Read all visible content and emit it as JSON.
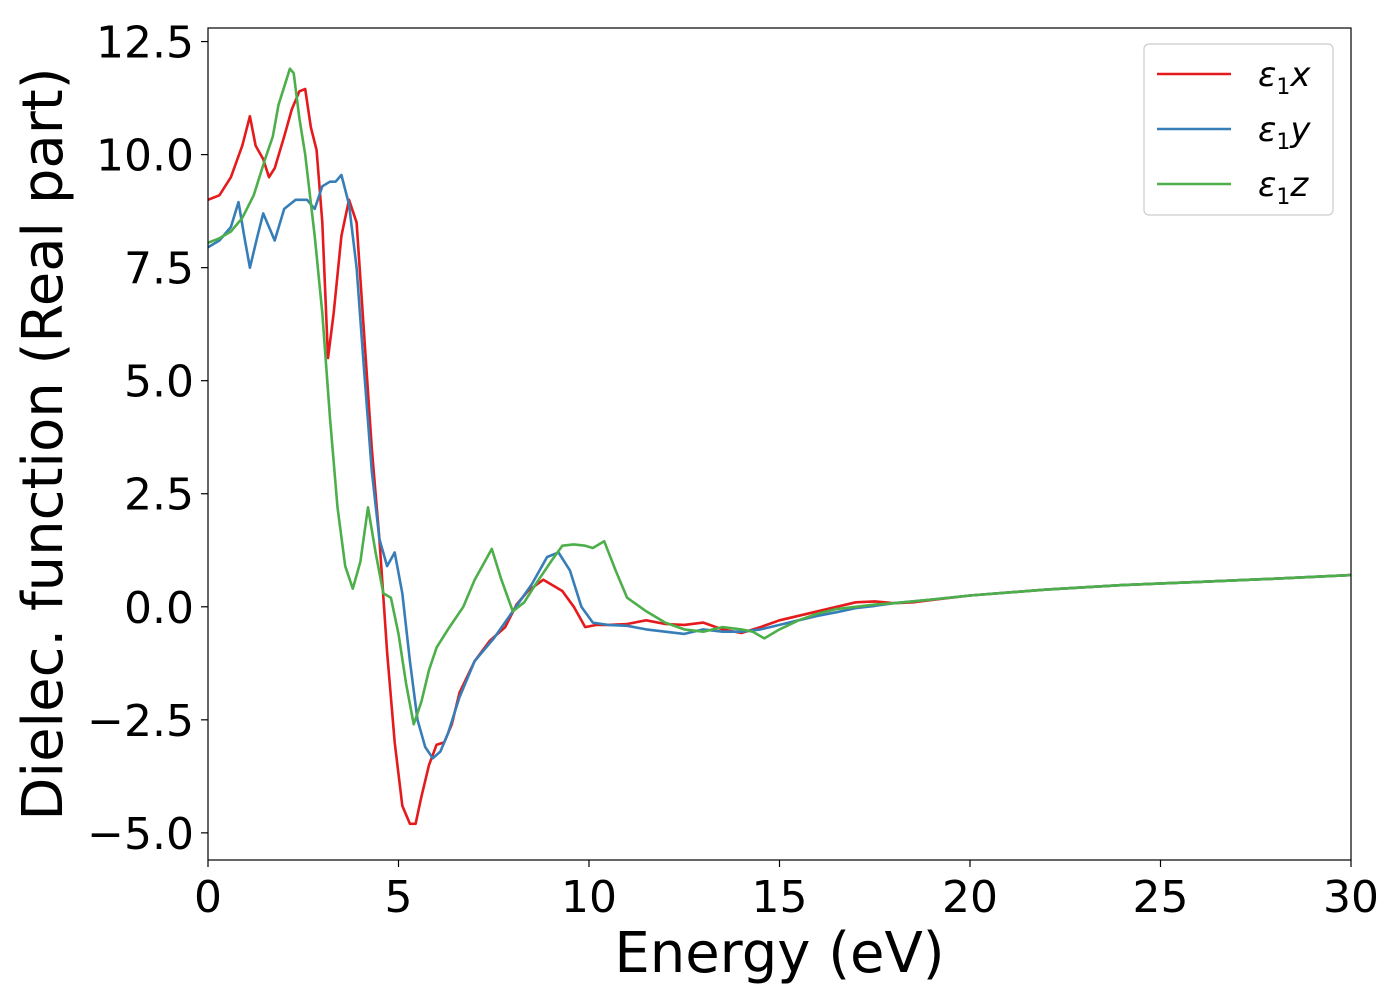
{
  "chart_data": {
    "type": "line",
    "xlabel": "Energy (eV)",
    "ylabel": "Dielec. function (Real part)",
    "xlim": [
      0,
      30
    ],
    "ylim": [
      -5.6,
      12.8
    ],
    "xticks": [
      0,
      5,
      10,
      15,
      20,
      25,
      30
    ],
    "xtick_labels": [
      "0",
      "5",
      "10",
      "15",
      "20",
      "25",
      "30"
    ],
    "yticks": [
      -5.0,
      -2.5,
      0.0,
      2.5,
      5.0,
      7.5,
      10.0,
      12.5
    ],
    "ytick_labels": [
      "−5.0",
      "−2.5",
      "0.0",
      "2.5",
      "5.0",
      "7.5",
      "10.0",
      "12.5"
    ],
    "grid": false,
    "legend_position": "top-right",
    "series": [
      {
        "name": "ε₁x",
        "legend_main": "ε",
        "legend_sub": "1",
        "legend_var": "x",
        "color": "#e41a1c",
        "x": [
          0,
          0.3,
          0.6,
          0.9,
          1.1,
          1.25,
          1.45,
          1.6,
          1.75,
          2.0,
          2.2,
          2.4,
          2.55,
          2.7,
          2.85,
          3.0,
          3.15,
          3.3,
          3.5,
          3.7,
          3.9,
          4.1,
          4.3,
          4.5,
          4.7,
          4.9,
          5.1,
          5.3,
          5.45,
          5.6,
          5.8,
          6.0,
          6.2,
          6.4,
          6.6,
          7.0,
          7.4,
          7.8,
          8.1,
          8.4,
          8.8,
          9.0,
          9.3,
          9.6,
          9.9,
          10.2,
          10.5,
          11.0,
          11.5,
          12.0,
          12.5,
          13.0,
          13.5,
          14.0,
          14.5,
          15.0,
          15.5,
          16.0,
          16.5,
          17.0,
          17.5,
          18.0,
          18.5,
          19.0,
          20.0,
          22.0,
          24.0,
          26.0,
          28.0,
          30.0
        ],
        "y": [
          9.0,
          9.1,
          9.5,
          10.2,
          10.85,
          10.2,
          9.9,
          9.5,
          9.7,
          10.4,
          11.0,
          11.4,
          11.45,
          10.6,
          10.1,
          8.5,
          5.5,
          6.5,
          8.2,
          9.0,
          8.5,
          6.0,
          3.5,
          1.5,
          -1.0,
          -3.0,
          -4.4,
          -4.8,
          -4.8,
          -4.2,
          -3.5,
          -3.05,
          -3.0,
          -2.6,
          -1.9,
          -1.2,
          -0.75,
          -0.45,
          0.05,
          0.35,
          0.6,
          0.5,
          0.35,
          0.0,
          -0.45,
          -0.4,
          -0.4,
          -0.38,
          -0.3,
          -0.38,
          -0.4,
          -0.35,
          -0.5,
          -0.58,
          -0.45,
          -0.3,
          -0.2,
          -0.1,
          0.0,
          0.1,
          0.12,
          0.08,
          0.1,
          0.15,
          0.25,
          0.38,
          0.48,
          0.55,
          0.62,
          0.7
        ]
      },
      {
        "name": "ε₁y",
        "legend_main": "ε",
        "legend_sub": "1",
        "legend_var": "y",
        "color": "#377eb8",
        "x": [
          0,
          0.3,
          0.6,
          0.8,
          0.95,
          1.1,
          1.3,
          1.45,
          1.6,
          1.75,
          2.0,
          2.3,
          2.6,
          2.8,
          3.0,
          3.2,
          3.35,
          3.5,
          3.7,
          3.9,
          4.1,
          4.3,
          4.5,
          4.7,
          4.9,
          5.1,
          5.3,
          5.5,
          5.7,
          5.9,
          6.1,
          6.3,
          6.6,
          7.0,
          7.5,
          8.0,
          8.5,
          8.9,
          9.2,
          9.5,
          9.8,
          10.1,
          10.5,
          11.0,
          11.5,
          12.0,
          12.5,
          13.0,
          13.5,
          14.0,
          14.5,
          15.0,
          15.5,
          16.0,
          16.5,
          17.0,
          17.5,
          18.0,
          19.0,
          20.0,
          22.0,
          24.0,
          26.0,
          28.0,
          30.0
        ],
        "y": [
          7.95,
          8.1,
          8.4,
          8.95,
          8.2,
          7.5,
          8.2,
          8.7,
          8.4,
          8.1,
          8.8,
          9.0,
          9.0,
          8.8,
          9.3,
          9.4,
          9.4,
          9.55,
          8.9,
          7.5,
          5.2,
          3.0,
          1.5,
          0.9,
          1.2,
          0.3,
          -1.2,
          -2.5,
          -3.1,
          -3.35,
          -3.2,
          -2.8,
          -2.0,
          -1.2,
          -0.7,
          -0.1,
          0.5,
          1.1,
          1.2,
          0.8,
          0.0,
          -0.35,
          -0.4,
          -0.42,
          -0.5,
          -0.55,
          -0.6,
          -0.5,
          -0.55,
          -0.55,
          -0.5,
          -0.4,
          -0.3,
          -0.2,
          -0.12,
          -0.03,
          0.02,
          0.08,
          0.16,
          0.25,
          0.38,
          0.48,
          0.55,
          0.62,
          0.7
        ]
      },
      {
        "name": "ε₁z",
        "legend_main": "ε",
        "legend_sub": "1",
        "legend_var": "z",
        "color": "#4daf4a",
        "x": [
          0,
          0.3,
          0.6,
          0.9,
          1.2,
          1.5,
          1.7,
          1.85,
          2.0,
          2.15,
          2.25,
          2.4,
          2.55,
          2.8,
          3.0,
          3.2,
          3.4,
          3.6,
          3.8,
          4.0,
          4.2,
          4.4,
          4.6,
          4.8,
          5.0,
          5.2,
          5.4,
          5.6,
          5.8,
          6.0,
          6.3,
          6.7,
          7.0,
          7.2,
          7.45,
          7.7,
          8.0,
          8.3,
          8.6,
          9.0,
          9.3,
          9.6,
          9.9,
          10.1,
          10.4,
          10.7,
          11.0,
          11.5,
          12.0,
          12.5,
          13.0,
          13.5,
          14.0,
          14.3,
          14.6,
          15.0,
          15.5,
          16.0,
          16.5,
          17.0,
          17.5,
          18.0,
          19.0,
          20.0,
          22.0,
          24.0,
          26.0,
          28.0,
          30.0
        ],
        "y": [
          8.05,
          8.15,
          8.3,
          8.6,
          9.1,
          9.9,
          10.4,
          11.1,
          11.5,
          11.9,
          11.8,
          10.8,
          10.0,
          8.2,
          6.5,
          4.2,
          2.2,
          0.9,
          0.4,
          1.0,
          2.2,
          1.2,
          0.3,
          0.2,
          -0.6,
          -1.7,
          -2.6,
          -2.1,
          -1.4,
          -0.9,
          -0.5,
          0.0,
          0.6,
          0.9,
          1.28,
          0.6,
          -0.1,
          0.1,
          0.5,
          1.0,
          1.35,
          1.38,
          1.35,
          1.3,
          1.45,
          0.8,
          0.2,
          -0.1,
          -0.35,
          -0.5,
          -0.55,
          -0.45,
          -0.5,
          -0.55,
          -0.7,
          -0.5,
          -0.3,
          -0.15,
          -0.05,
          0.0,
          0.05,
          0.08,
          0.16,
          0.25,
          0.38,
          0.48,
          0.55,
          0.62,
          0.7
        ]
      }
    ]
  }
}
